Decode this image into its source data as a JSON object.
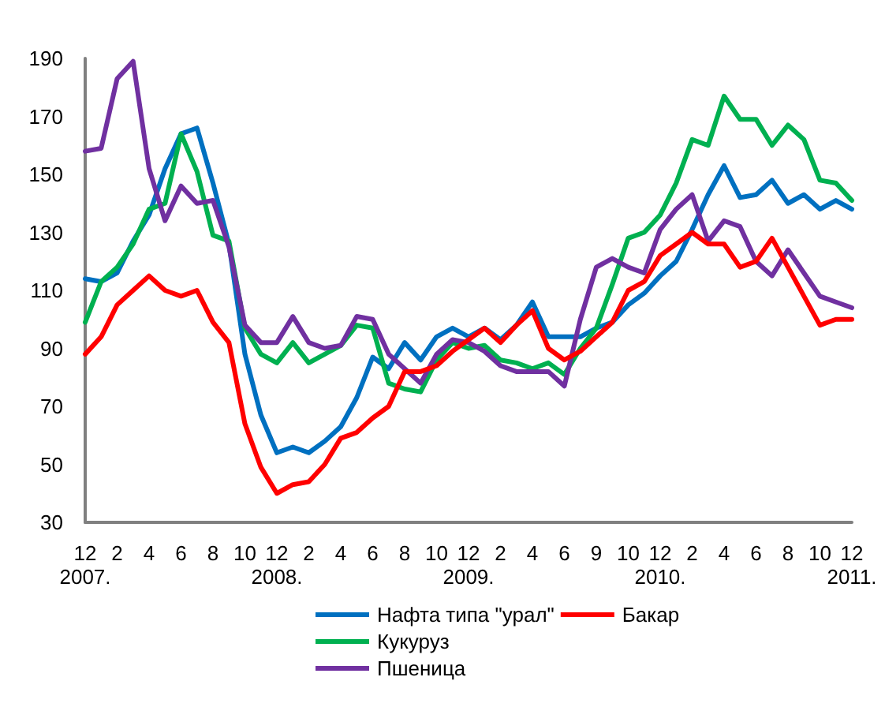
{
  "chart_data": {
    "type": "line",
    "categories": [
      "12\n2007.",
      null,
      "2",
      null,
      "4",
      null,
      "6",
      null,
      "8",
      null,
      "10",
      null,
      "12\n2008.",
      null,
      "2",
      null,
      "4",
      null,
      "6",
      null,
      "8",
      null,
      "10",
      null,
      "12\n2009.",
      null,
      "2",
      null,
      "4",
      null,
      "6",
      null,
      "9",
      null,
      "10",
      null,
      "12\n2010.",
      null,
      "2",
      null,
      "4",
      null,
      "6",
      null,
      "8",
      null,
      "10",
      null,
      "12\n2011."
    ],
    "series": [
      {
        "name": "Нафта типа \"урал\"",
        "color": "#0070c0",
        "values": [
          114,
          113,
          116,
          127,
          136,
          152,
          164,
          166,
          147,
          126,
          88,
          67,
          54,
          56,
          54,
          58,
          63,
          73,
          87,
          83,
          92,
          86,
          94,
          97,
          94,
          97,
          93,
          98,
          106,
          94,
          94,
          94,
          97,
          99,
          105,
          109,
          115,
          120,
          131,
          143,
          153,
          142,
          143,
          148,
          140,
          143,
          138,
          141,
          138
        ]
      },
      {
        "name": "Кукуруз",
        "color": "#00b050",
        "values": [
          99,
          113,
          118,
          126,
          138,
          140,
          164,
          151,
          129,
          127,
          97,
          88,
          85,
          92,
          85,
          88,
          91,
          98,
          97,
          78,
          76,
          75,
          86,
          92,
          90,
          91,
          86,
          85,
          83,
          85,
          81,
          90,
          97,
          112,
          128,
          130,
          136,
          147,
          162,
          160,
          177,
          169,
          169,
          160,
          167,
          162,
          148,
          147,
          141
        ]
      },
      {
        "name": "Пшеница",
        "color": "#7030a0",
        "values": [
          158,
          159,
          183,
          189,
          152,
          134,
          146,
          140,
          141,
          125,
          98,
          92,
          92,
          101,
          92,
          90,
          91,
          101,
          100,
          88,
          83,
          78,
          88,
          93,
          92,
          89,
          84,
          82,
          82,
          82,
          77,
          100,
          118,
          121,
          118,
          116,
          131,
          138,
          143,
          127,
          134,
          132,
          120,
          115,
          124,
          116,
          108,
          106,
          104
        ]
      },
      {
        "name": "Бакар",
        "color": "#ff0000",
        "values": [
          88,
          94,
          105,
          110,
          115,
          110,
          108,
          110,
          99,
          92,
          64,
          49,
          40,
          43,
          44,
          50,
          59,
          61,
          66,
          70,
          82,
          82,
          84,
          89,
          93,
          97,
          92,
          98,
          103,
          90,
          86,
          89,
          94,
          99,
          110,
          113,
          122,
          126,
          130,
          126,
          126,
          118,
          120,
          128,
          118,
          108,
          98,
          100,
          100
        ]
      }
    ],
    "ylim": [
      30,
      190
    ],
    "yticks": [
      30,
      50,
      70,
      90,
      110,
      130,
      150,
      170,
      190
    ],
    "grid": false,
    "legend": "bottom",
    "marker": "none",
    "line_style": "solid"
  }
}
